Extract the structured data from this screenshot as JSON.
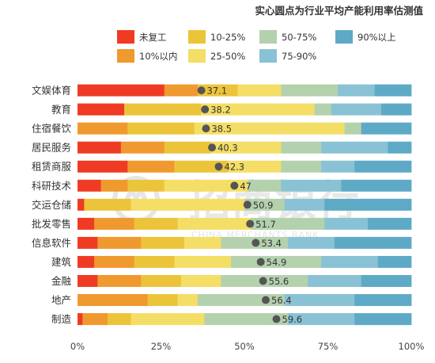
{
  "note": "实心圆点为行业平均产能利用率估测值",
  "watermark": {
    "text": "招商银行",
    "sub": "CHINA MERCHANTS BANK"
  },
  "colors": {
    "未复工": "#ef3b24",
    "10%以内": "#f0992e",
    "10-25%": "#ecc43a",
    "25-50%": "#f4de66",
    "50-75%": "#b4d1ae",
    "75-90%": "#89c2d4",
    "90%以上": "#5eaac6"
  },
  "chart_data": {
    "type": "bar",
    "stacked": true,
    "orientation": "horizontal",
    "title": "",
    "xlabel": "",
    "ylabel": "",
    "xlim": [
      0,
      100
    ],
    "x_ticks": [
      "0%",
      "25%",
      "50%",
      "75%",
      "100%"
    ],
    "legend_position": "top",
    "categories": [
      "文娱体育",
      "教育",
      "住宿餐饮",
      "居民服务",
      "租赁商服",
      "科研技术",
      "交运仓储",
      "批发零售",
      "信息软件",
      "建筑",
      "金融",
      "地产",
      "制造"
    ],
    "series": [
      {
        "name": "未复工",
        "values": [
          26,
          14,
          0,
          13,
          15,
          7,
          2,
          5,
          6,
          5,
          6,
          0,
          1.5
        ]
      },
      {
        "name": "10%以内",
        "values": [
          10,
          0,
          15,
          13,
          14,
          8,
          0,
          12,
          13,
          12,
          13,
          21,
          7.5
        ]
      },
      {
        "name": "10-25%",
        "values": [
          12,
          23,
          20,
          14,
          16,
          11,
          14,
          13,
          13,
          12,
          12,
          9,
          7
        ]
      },
      {
        "name": "25-50%",
        "values": [
          13,
          34,
          45,
          21,
          16,
          25,
          34,
          22,
          11,
          17,
          12,
          6,
          22
        ]
      },
      {
        "name": "50-75%",
        "values": [
          17,
          5,
          5,
          12,
          12,
          10,
          12,
          22,
          20,
          27,
          26,
          26,
          25
        ]
      },
      {
        "name": "75-90%",
        "values": [
          11,
          15,
          0,
          20,
          10,
          18,
          12,
          13,
          14,
          17,
          16,
          21,
          20
        ]
      },
      {
        "name": "90%以上",
        "values": [
          11,
          9,
          15,
          7,
          17,
          21,
          26,
          13,
          23,
          10,
          15,
          17,
          17
        ]
      }
    ],
    "avg_markers": [
      37.1,
      38.2,
      38.5,
      40.3,
      42.3,
      47,
      50.9,
      51.7,
      53.4,
      54.9,
      55.6,
      56.4,
      59.6
    ],
    "avg_labels": [
      "37.1",
      "38.2",
      "38.5",
      "40.3",
      "42.3",
      "47",
      "50.9",
      "51.7",
      "53.4",
      "54.9",
      "55.6",
      "56.4",
      "59.6"
    ]
  }
}
